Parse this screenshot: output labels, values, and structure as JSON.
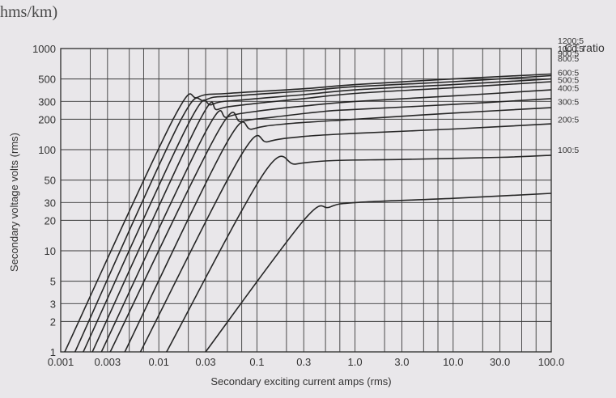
{
  "page_fragment": "hms/km)",
  "chart_data": {
    "type": "line",
    "x_scale": "log",
    "y_scale": "log",
    "xlim": [
      0.001,
      100
    ],
    "ylim": [
      1,
      1000
    ],
    "grid": true,
    "xlabel": "Secondary exciting current amps (rms)",
    "ylabel": "Secondary voltage volts (rms)",
    "legend_title": "CT ratio",
    "xticks": [
      {
        "value": 0.001,
        "label": "0.001"
      },
      {
        "value": 0.003,
        "label": "0.003"
      },
      {
        "value": 0.01,
        "label": "0.01"
      },
      {
        "value": 0.03,
        "label": "0.03"
      },
      {
        "value": 0.1,
        "label": "0.1"
      },
      {
        "value": 0.3,
        "label": "0.3"
      },
      {
        "value": 1,
        "label": "1.0"
      },
      {
        "value": 3,
        "label": "3.0"
      },
      {
        "value": 10,
        "label": "10.0"
      },
      {
        "value": 30,
        "label": "30.0"
      },
      {
        "value": 100,
        "label": "100.0"
      }
    ],
    "yticks": [
      {
        "value": 1,
        "label": "1"
      },
      {
        "value": 2,
        "label": "2"
      },
      {
        "value": 3,
        "label": "3"
      },
      {
        "value": 5,
        "label": "5"
      },
      {
        "value": 10,
        "label": "10"
      },
      {
        "value": 20,
        "label": "20"
      },
      {
        "value": 30,
        "label": "30"
      },
      {
        "value": 50,
        "label": "50"
      },
      {
        "value": 100,
        "label": "100"
      },
      {
        "value": 200,
        "label": "200"
      },
      {
        "value": 300,
        "label": "300"
      },
      {
        "value": 500,
        "label": "500"
      },
      {
        "value": 1000,
        "label": "1000"
      }
    ],
    "series": [
      {
        "name": "1200:5",
        "points": [
          [
            0.0011,
            1
          ],
          [
            0.014,
            200
          ],
          [
            0.025,
            330
          ],
          [
            0.05,
            360
          ],
          [
            0.3,
            400
          ],
          [
            1,
            440
          ],
          [
            10,
            500
          ],
          [
            100,
            560
          ]
        ]
      },
      {
        "name": "1000:5",
        "points": [
          [
            0.0014,
            1
          ],
          [
            0.016,
            180
          ],
          [
            0.03,
            310
          ],
          [
            0.06,
            340
          ],
          [
            0.3,
            380
          ],
          [
            1,
            420
          ],
          [
            10,
            470
          ],
          [
            100,
            540
          ]
        ]
      },
      {
        "name": "900:5",
        "points": [
          [
            0.0017,
            1
          ],
          [
            0.02,
            180
          ],
          [
            0.035,
            280
          ],
          [
            0.07,
            310
          ],
          [
            0.3,
            350
          ],
          [
            1,
            390
          ],
          [
            10,
            440
          ],
          [
            100,
            500
          ]
        ]
      },
      {
        "name": "800:5",
        "points": [
          [
            0.0021,
            1
          ],
          [
            0.025,
            180
          ],
          [
            0.04,
            250
          ],
          [
            0.08,
            280
          ],
          [
            0.3,
            320
          ],
          [
            1,
            360
          ],
          [
            10,
            410
          ],
          [
            100,
            470
          ]
        ]
      },
      {
        "name": "600:5",
        "points": [
          [
            0.0026,
            1
          ],
          [
            0.03,
            150
          ],
          [
            0.05,
            210
          ],
          [
            0.1,
            240
          ],
          [
            0.3,
            270
          ],
          [
            1,
            300
          ],
          [
            10,
            340
          ],
          [
            100,
            390
          ]
        ]
      },
      {
        "name": "500:5",
        "points": [
          [
            0.0032,
            1
          ],
          [
            0.04,
            150
          ],
          [
            0.07,
            190
          ],
          [
            0.15,
            210
          ],
          [
            0.5,
            240
          ],
          [
            1,
            250
          ],
          [
            10,
            280
          ],
          [
            100,
            320
          ]
        ]
      },
      {
        "name": "400:5",
        "points": [
          [
            0.0045,
            1
          ],
          [
            0.05,
            120
          ],
          [
            0.09,
            160
          ],
          [
            0.2,
            180
          ],
          [
            1,
            200
          ],
          [
            10,
            230
          ],
          [
            100,
            260
          ]
        ]
      },
      {
        "name": "300:5",
        "points": [
          [
            0.0065,
            1
          ],
          [
            0.07,
            90
          ],
          [
            0.13,
            120
          ],
          [
            0.3,
            135
          ],
          [
            1,
            145
          ],
          [
            10,
            160
          ],
          [
            100,
            180
          ]
        ]
      },
      {
        "name": "200:5",
        "points": [
          [
            0.012,
            1
          ],
          [
            0.12,
            60
          ],
          [
            0.25,
            72
          ],
          [
            0.6,
            78
          ],
          [
            3,
            80
          ],
          [
            30,
            84
          ],
          [
            100,
            88
          ]
        ]
      },
      {
        "name": "100:5",
        "points": [
          [
            0.03,
            1
          ],
          [
            0.3,
            20
          ],
          [
            0.55,
            27
          ],
          [
            1,
            30
          ],
          [
            10,
            33
          ],
          [
            100,
            37
          ]
        ]
      }
    ],
    "legend_y": [
      1200,
      1000,
      900,
      800,
      580,
      490,
      410,
      300,
      200,
      100
    ]
  }
}
